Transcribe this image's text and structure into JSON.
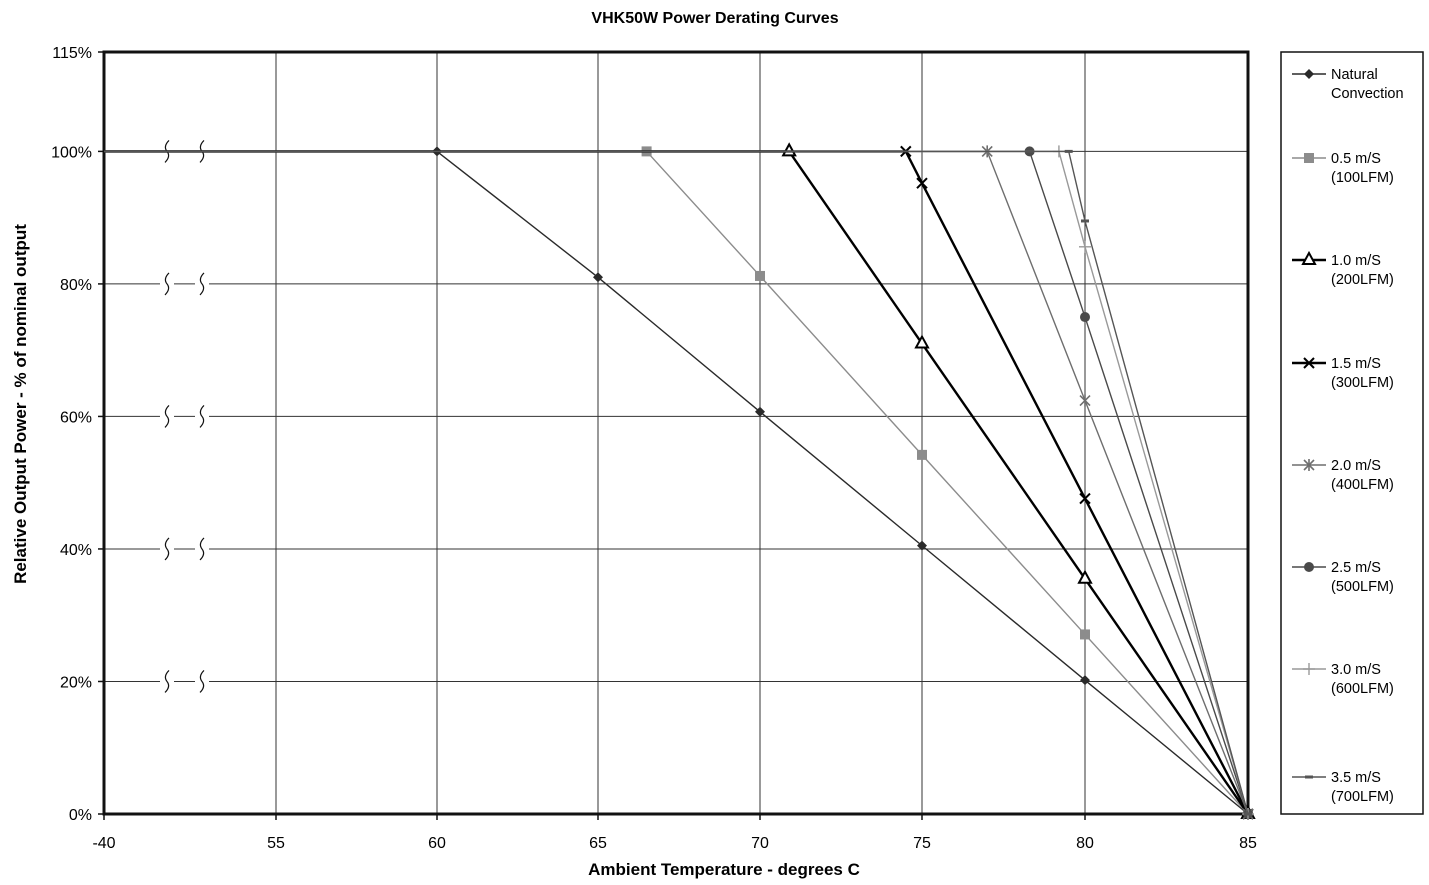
{
  "chart_data": {
    "type": "line",
    "title": "VHK50W Power Derating Curves",
    "xlabel": "Ambient Temperature - degrees C",
    "ylabel": "Relative Output Power - % of nominal output",
    "x_tick_labels": [
      "-40",
      "55",
      "60",
      "65",
      "70",
      "75",
      "80",
      "85"
    ],
    "x_tick_note": "Broken axis: the -40 tick is followed by an axis break, then 55 to 85 in steps of 5",
    "y_tick_labels": [
      "0%",
      "20%",
      "40%",
      "60%",
      "80%",
      "100%",
      "115%"
    ],
    "ylim": [
      0,
      115
    ],
    "grid": true,
    "legend_position": "right",
    "series": [
      {
        "name": "Natural Convection",
        "marker": "diamond",
        "color": "#2a2a2a",
        "points": [
          [
            -40,
            100
          ],
          [
            60,
            100
          ],
          [
            65,
            81
          ],
          [
            70,
            60.7
          ],
          [
            75,
            40.5
          ],
          [
            80,
            20.2
          ],
          [
            85,
            0
          ]
        ]
      },
      {
        "name": "0.5 m/S (100LFM)",
        "marker": "square",
        "color": "#8c8c8c",
        "points": [
          [
            -40,
            100
          ],
          [
            66.5,
            100
          ],
          [
            70,
            81.2
          ],
          [
            75,
            54.2
          ],
          [
            80,
            27.1
          ],
          [
            85,
            0
          ]
        ]
      },
      {
        "name": "1.0 m/S (200LFM)",
        "marker": "triangle",
        "color": "#000000",
        "points": [
          [
            -40,
            100
          ],
          [
            70.9,
            100
          ],
          [
            75,
            71
          ],
          [
            80,
            35.5
          ],
          [
            85,
            0
          ]
        ]
      },
      {
        "name": "1.5 m/S (300LFM)",
        "marker": "x",
        "color": "#000000",
        "points": [
          [
            -40,
            100
          ],
          [
            74.5,
            100
          ],
          [
            75,
            95.2
          ],
          [
            80,
            47.6
          ],
          [
            85,
            0
          ]
        ]
      },
      {
        "name": "2.0 m/S (400LFM)",
        "marker": "star",
        "color": "#6e6e6e",
        "points": [
          [
            -40,
            100
          ],
          [
            77,
            100
          ],
          [
            80,
            62.4
          ],
          [
            85,
            0
          ]
        ]
      },
      {
        "name": "2.5 m/S (500LFM)",
        "marker": "circle",
        "color": "#4a4a4a",
        "points": [
          [
            -40,
            100
          ],
          [
            78.3,
            100
          ],
          [
            80,
            75
          ],
          [
            85,
            0
          ]
        ]
      },
      {
        "name": "3.0 m/S (600LFM)",
        "marker": "plus",
        "color": "#999999",
        "points": [
          [
            -40,
            100
          ],
          [
            79.2,
            100
          ],
          [
            80,
            85.6
          ],
          [
            85,
            0
          ]
        ]
      },
      {
        "name": "3.5 m/S (700LFM)",
        "marker": "dash",
        "color": "#555555",
        "points": [
          [
            -40,
            100
          ],
          [
            79.5,
            100
          ],
          [
            80,
            89.5
          ],
          [
            85,
            0
          ]
        ]
      }
    ]
  }
}
